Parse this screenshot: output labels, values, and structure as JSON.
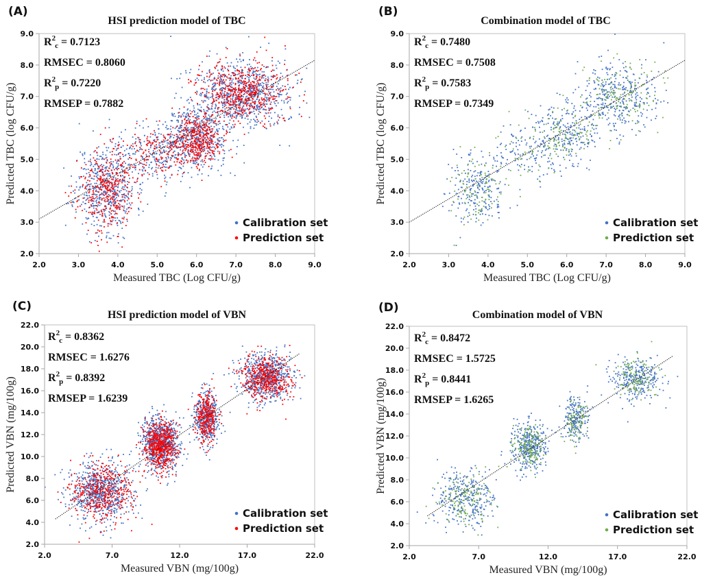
{
  "chart_data": [
    {
      "id": "A",
      "type": "scatter",
      "panel_label": "(A)",
      "title": "HSI prediction model of TBC",
      "xlabel": "Measured TBC (Log CFU/g)",
      "ylabel": "Predicted TBC (log CFU/g)",
      "xlim": [
        2.0,
        9.0
      ],
      "ylim": [
        2.0,
        9.0
      ],
      "xticks": [
        "2.0",
        "3.0",
        "4.0",
        "5.0",
        "6.0",
        "7.0",
        "8.0",
        "9.0"
      ],
      "yticks": [
        "2.0",
        "3.0",
        "4.0",
        "5.0",
        "6.0",
        "7.0",
        "8.0",
        "9.0"
      ],
      "xtick_values": [
        2,
        3,
        4,
        5,
        6,
        7,
        8,
        9
      ],
      "ytick_values": [
        2,
        3,
        4,
        5,
        6,
        7,
        8,
        9
      ],
      "grid": false,
      "legend_position": "bottom-right",
      "stats": [
        {
          "label": "R",
          "sup": "2",
          "sub": "c",
          "value": " = 0.7123"
        },
        {
          "label": "RMSEC",
          "sup": "",
          "sub": "",
          "value": " = 0.8060"
        },
        {
          "label": "R",
          "sup": "2",
          "sub": "p",
          "value": " = 0.7220"
        },
        {
          "label": "RMSEP",
          "sup": "",
          "sub": "",
          "value": " = 0.7882"
        }
      ],
      "fit_line": {
        "x": [
          2.0,
          9.0
        ],
        "y": [
          3.1,
          8.15
        ],
        "style": "dotted"
      },
      "series": [
        {
          "name": "Calibration set",
          "color": "#4472C4",
          "seed": 11,
          "clusters": [
            {
              "cx": 3.7,
              "cy": 4.1,
              "sx": 0.38,
              "sy": 0.7,
              "n": 520
            },
            {
              "cx": 4.9,
              "cy": 5.2,
              "sx": 0.45,
              "sy": 0.45,
              "n": 240
            },
            {
              "cx": 6.0,
              "cy": 5.7,
              "sx": 0.4,
              "sy": 0.5,
              "n": 520
            },
            {
              "cx": 7.2,
              "cy": 7.05,
              "sx": 0.6,
              "sy": 0.55,
              "n": 800
            }
          ]
        },
        {
          "name": "Prediction set",
          "color": "#FF0000",
          "seed": 23,
          "clusters": [
            {
              "cx": 3.7,
              "cy": 4.0,
              "sx": 0.35,
              "sy": 0.65,
              "n": 360
            },
            {
              "cx": 4.9,
              "cy": 5.2,
              "sx": 0.45,
              "sy": 0.45,
              "n": 150
            },
            {
              "cx": 6.0,
              "cy": 5.6,
              "sx": 0.3,
              "sy": 0.4,
              "n": 380
            },
            {
              "cx": 7.2,
              "cy": 7.1,
              "sx": 0.55,
              "sy": 0.5,
              "n": 560
            }
          ]
        }
      ]
    },
    {
      "id": "B",
      "type": "scatter",
      "panel_label": "(B)",
      "title": "Combination model of TBC",
      "xlabel": "Measured TBC (Log CFU/g)",
      "ylabel": "Predicted TBC (log CFU/g)",
      "xlim": [
        2.0,
        9.0
      ],
      "ylim": [
        2.0,
        9.0
      ],
      "xticks": [
        "2.0",
        "3.0",
        "4.0",
        "5.0",
        "6.0",
        "7.0",
        "8.0",
        "9.0"
      ],
      "yticks": [
        "2.0",
        "3.0",
        "4.0",
        "5.0",
        "6.0",
        "7.0",
        "8.0",
        "9.0"
      ],
      "xtick_values": [
        2,
        3,
        4,
        5,
        6,
        7,
        8,
        9
      ],
      "ytick_values": [
        2,
        3,
        4,
        5,
        6,
        7,
        8,
        9
      ],
      "grid": false,
      "legend_position": "bottom-right",
      "stats": [
        {
          "label": "R",
          "sup": "2",
          "sub": "c",
          "value": " = 0.7480"
        },
        {
          "label": "RMSEC",
          "sup": "",
          "sub": "",
          "value": " = 0.7508"
        },
        {
          "label": "R",
          "sup": "2",
          "sub": "p",
          "value": " = 0.7583"
        },
        {
          "label": "RMSEP",
          "sup": "",
          "sub": "",
          "value": " = 0.7349"
        }
      ],
      "fit_line": {
        "x": [
          2.0,
          9.0
        ],
        "y": [
          3.0,
          8.15
        ],
        "style": "dotted"
      },
      "series": [
        {
          "name": "Calibration set",
          "color": "#4472C4",
          "seed": 31,
          "clusters": [
            {
              "cx": 3.7,
              "cy": 4.0,
              "sx": 0.38,
              "sy": 0.6,
              "n": 220
            },
            {
              "cx": 4.9,
              "cy": 5.2,
              "sx": 0.45,
              "sy": 0.45,
              "n": 110
            },
            {
              "cx": 6.0,
              "cy": 5.8,
              "sx": 0.38,
              "sy": 0.45,
              "n": 220
            },
            {
              "cx": 7.3,
              "cy": 7.0,
              "sx": 0.55,
              "sy": 0.55,
              "n": 360
            }
          ]
        },
        {
          "name": "Prediction set",
          "color": "#70AD47",
          "seed": 47,
          "clusters": [
            {
              "cx": 3.7,
              "cy": 4.0,
              "sx": 0.35,
              "sy": 0.55,
              "n": 90
            },
            {
              "cx": 4.9,
              "cy": 5.2,
              "sx": 0.45,
              "sy": 0.45,
              "n": 40
            },
            {
              "cx": 6.0,
              "cy": 5.7,
              "sx": 0.35,
              "sy": 0.4,
              "n": 90
            },
            {
              "cx": 7.3,
              "cy": 7.0,
              "sx": 0.5,
              "sy": 0.5,
              "n": 150
            }
          ]
        }
      ]
    },
    {
      "id": "C",
      "type": "scatter",
      "panel_label": "(C)",
      "title": "HSI prediction model of VBN",
      "xlabel": "Measured VBN (mg/100g)",
      "ylabel": "Predicted VBN (mg/100g)",
      "xlim": [
        2.0,
        22.0
      ],
      "ylim": [
        2.0,
        22.0
      ],
      "xticks": [
        "2.0",
        "7.0",
        "12.0",
        "17.0",
        "22.0"
      ],
      "yticks": [
        "2.0",
        "4.0",
        "6.0",
        "8.0",
        "10.0",
        "12.0",
        "14.0",
        "16.0",
        "18.0",
        "20.0",
        "22.0"
      ],
      "xtick_values": [
        2,
        7,
        12,
        17,
        22
      ],
      "ytick_values": [
        2,
        4,
        6,
        8,
        10,
        12,
        14,
        16,
        18,
        20,
        22
      ],
      "grid": false,
      "legend_position": "bottom-right",
      "stats": [
        {
          "label": "R",
          "sup": "2",
          "sub": "c",
          "value": " = 0.8362"
        },
        {
          "label": "RMSEC",
          "sup": "",
          "sub": "",
          "value": " = 1.6276"
        },
        {
          "label": "R",
          "sup": "2",
          "sub": "p",
          "value": " = 0.8392"
        },
        {
          "label": "RMSEP",
          "sup": "",
          "sub": "",
          "value": " = 1.6239"
        }
      ],
      "fit_line": {
        "x": [
          2.8,
          20.9
        ],
        "y": [
          4.3,
          19.4
        ],
        "style": "dotted"
      },
      "series": [
        {
          "name": "Calibration set",
          "color": "#4472C4",
          "seed": 53,
          "clusters": [
            {
              "cx": 6.2,
              "cy": 6.8,
              "sx": 1.2,
              "sy": 1.4,
              "n": 700
            },
            {
              "cx": 10.6,
              "cy": 11.2,
              "sx": 0.7,
              "sy": 1.2,
              "n": 750
            },
            {
              "cx": 14.0,
              "cy": 13.6,
              "sx": 0.45,
              "sy": 1.2,
              "n": 420
            },
            {
              "cx": 18.4,
              "cy": 17.2,
              "sx": 0.95,
              "sy": 1.1,
              "n": 650
            }
          ]
        },
        {
          "name": "Prediction set",
          "color": "#FF0000",
          "seed": 67,
          "clusters": [
            {
              "cx": 6.2,
              "cy": 6.6,
              "sx": 1.1,
              "sy": 1.3,
              "n": 420
            },
            {
              "cx": 10.6,
              "cy": 11.0,
              "sx": 0.6,
              "sy": 1.1,
              "n": 560
            },
            {
              "cx": 14.0,
              "cy": 13.6,
              "sx": 0.4,
              "sy": 1.1,
              "n": 300
            },
            {
              "cx": 18.4,
              "cy": 17.2,
              "sx": 0.9,
              "sy": 1.0,
              "n": 440
            }
          ]
        }
      ]
    },
    {
      "id": "D",
      "type": "scatter",
      "panel_label": "(D)",
      "title": "Combination model of VBN",
      "xlabel": "Measured VBN (mg/100g)",
      "ylabel": "Predicted VBN (mg/100g)",
      "xlim": [
        2.0,
        22.0
      ],
      "ylim": [
        2.0,
        22.0
      ],
      "xticks": [
        "2.0",
        "7.0",
        "12.0",
        "17.0",
        "22.0"
      ],
      "yticks": [
        "2.0",
        "4.0",
        "6.0",
        "8.0",
        "10.0",
        "12.0",
        "14.0",
        "16.0",
        "18.0",
        "20.0",
        "22.0"
      ],
      "xtick_values": [
        2,
        7,
        12,
        17,
        22
      ],
      "ytick_values": [
        2,
        4,
        6,
        8,
        10,
        12,
        14,
        16,
        18,
        20,
        22
      ],
      "grid": false,
      "legend_position": "bottom-right",
      "stats": [
        {
          "label": "R",
          "sup": "2",
          "sub": "c",
          "value": " = 0.8472"
        },
        {
          "label": "RMSEC",
          "sup": "",
          "sub": "",
          "value": " = 1.5725"
        },
        {
          "label": "R",
          "sup": "2",
          "sub": "p",
          "value": " = 0.8441"
        },
        {
          "label": "RMSEP",
          "sup": "",
          "sub": "",
          "value": " = 1.6265"
        }
      ],
      "fit_line": {
        "x": [
          3.3,
          21.0
        ],
        "y": [
          4.7,
          19.3
        ],
        "style": "dotted"
      },
      "series": [
        {
          "name": "Calibration set",
          "color": "#4472C4",
          "seed": 79,
          "clusters": [
            {
              "cx": 6.0,
              "cy": 6.4,
              "sx": 1.1,
              "sy": 1.3,
              "n": 300
            },
            {
              "cx": 10.6,
              "cy": 11.1,
              "sx": 0.65,
              "sy": 1.1,
              "n": 330
            },
            {
              "cx": 14.0,
              "cy": 13.6,
              "sx": 0.4,
              "sy": 1.1,
              "n": 190
            },
            {
              "cx": 18.3,
              "cy": 17.2,
              "sx": 0.85,
              "sy": 1.0,
              "n": 270
            }
          ]
        },
        {
          "name": "Prediction set",
          "color": "#70AD47",
          "seed": 83,
          "clusters": [
            {
              "cx": 6.0,
              "cy": 6.2,
              "sx": 1.0,
              "sy": 1.2,
              "n": 130
            },
            {
              "cx": 10.6,
              "cy": 11.0,
              "sx": 0.6,
              "sy": 1.0,
              "n": 140
            },
            {
              "cx": 14.0,
              "cy": 13.6,
              "sx": 0.4,
              "sy": 1.0,
              "n": 80
            },
            {
              "cx": 18.3,
              "cy": 17.2,
              "sx": 0.85,
              "sy": 1.0,
              "n": 110
            }
          ]
        }
      ]
    }
  ]
}
